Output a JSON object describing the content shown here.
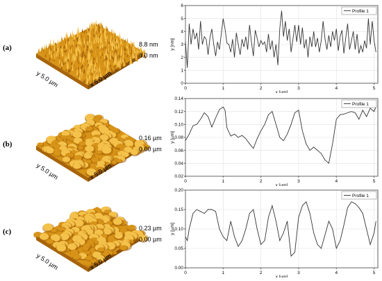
{
  "panels": [
    {
      "label": "(a)",
      "afm": {
        "z_max": "8.8 nm",
        "z_min": "0.0 nm",
        "x_axis": "x 5.0 µm",
        "y_axis": "y 5.0 µm",
        "texture": "fine-spiky"
      },
      "legend": "Profile 1"
    },
    {
      "label": "(b)",
      "afm": {
        "z_max": "0.16 µm",
        "z_min": "0.00 µm",
        "x_axis": "x 5.0 µm",
        "y_axis": "y 5.0 µm",
        "texture": "smooth-bumps"
      },
      "legend": "Profile 1"
    },
    {
      "label": "(c)",
      "afm": {
        "z_max": "0.23 µm",
        "z_min": "0.00 µm",
        "x_axis": "x 5.0 µm",
        "y_axis": "y 5.0 µm",
        "texture": "smooth-bumps"
      },
      "legend": "Profile 1"
    }
  ],
  "colors": {
    "afm_dark": "#a8640a",
    "afm_mid": "#d89418",
    "afm_light": "#f4c24a",
    "line": "#333333",
    "grid": "#e0e0e0"
  },
  "chart_data": [
    {
      "type": "line",
      "xlabel": "x [µm]",
      "ylabel": "y [nm]",
      "xlim": [
        0,
        5.1
      ],
      "ylim": [
        0,
        6
      ],
      "xticks": [
        0,
        1,
        2,
        3,
        4,
        5
      ],
      "xtick_labels": [
        "0",
        "1",
        "2",
        "3",
        "4",
        "5"
      ],
      "yticks": [
        0,
        1,
        2,
        3,
        4,
        5,
        6
      ],
      "ytick_labels": [
        "0",
        "1",
        "2",
        "3",
        "4",
        "5",
        "6"
      ],
      "grid": true,
      "legend_position": "top-right",
      "series": [
        {
          "name": "Profile 1",
          "x": [
            0,
            0.05,
            0.1,
            0.15,
            0.2,
            0.25,
            0.3,
            0.35,
            0.4,
            0.45,
            0.5,
            0.55,
            0.6,
            0.65,
            0.7,
            0.75,
            0.8,
            0.85,
            0.9,
            0.95,
            1.0,
            1.05,
            1.1,
            1.15,
            1.2,
            1.25,
            1.3,
            1.35,
            1.4,
            1.45,
            1.5,
            1.55,
            1.6,
            1.65,
            1.7,
            1.75,
            1.8,
            1.85,
            1.9,
            1.95,
            2.0,
            2.05,
            2.1,
            2.15,
            2.2,
            2.25,
            2.3,
            2.35,
            2.4,
            2.45,
            2.5,
            2.55,
            2.6,
            2.65,
            2.7,
            2.75,
            2.8,
            2.85,
            2.9,
            2.95,
            3.0,
            3.05,
            3.1,
            3.15,
            3.2,
            3.25,
            3.3,
            3.35,
            3.4,
            3.45,
            3.5,
            3.55,
            3.6,
            3.65,
            3.7,
            3.75,
            3.8,
            3.85,
            3.9,
            3.95,
            4.0,
            4.05,
            4.1,
            4.15,
            4.2,
            4.25,
            4.3,
            4.35,
            4.4,
            4.45,
            4.5,
            4.55,
            4.6,
            4.65,
            4.7,
            4.75,
            4.8,
            4.85,
            4.9,
            4.95,
            5.0,
            5.05
          ],
          "y": [
            3.2,
            1.2,
            4.6,
            3.0,
            4.2,
            3.4,
            3.9,
            2.6,
            4.8,
            3.0,
            3.6,
            3.4,
            2.2,
            3.5,
            4.2,
            3.0,
            2.1,
            3.2,
            2.6,
            3.8,
            5.0,
            4.2,
            3.1,
            3.0,
            2.4,
            3.4,
            2.0,
            3.9,
            3.0,
            2.2,
            3.4,
            2.8,
            3.6,
            2.6,
            4.5,
            3.2,
            2.1,
            4.1,
            3.5,
            2.8,
            3.3,
            3.0,
            3.2,
            2.4,
            3.8,
            2.6,
            3.3,
            2.0,
            3.0,
            1.4,
            4.2,
            5.6,
            3.6,
            4.8,
            3.3,
            4.2,
            2.4,
            3.4,
            4.5,
            3.2,
            4.5,
            3.0,
            4.3,
            2.7,
            3.4,
            2.0,
            3.6,
            2.8,
            4.0,
            2.8,
            3.5,
            2.4,
            3.3,
            4.8,
            3.4,
            2.6,
            3.7,
            2.8,
            4.0,
            3.3,
            4.2,
            2.5,
            3.6,
            4.1,
            2.3,
            3.5,
            4.6,
            2.6,
            3.3,
            4.0,
            2.6,
            3.8,
            2.3,
            2.9,
            2.4,
            3.3,
            2.7,
            5.0,
            3.0,
            4.8,
            3.3,
            2.4
          ]
        }
      ]
    },
    {
      "type": "line",
      "xlabel": "x [µm]",
      "ylabel": "y [µm]",
      "xlim": [
        0,
        5.1
      ],
      "ylim": [
        0.02,
        0.14
      ],
      "xticks": [
        0,
        1,
        2,
        3,
        4,
        5
      ],
      "xtick_labels": [
        "0",
        "1",
        "2",
        "3",
        "4",
        "5"
      ],
      "yticks": [
        0.02,
        0.04,
        0.06,
        0.08,
        0.1,
        0.12,
        0.14
      ],
      "ytick_labels": [
        "0.02",
        "0.04",
        "0.06",
        "0.08",
        "0.10",
        "0.12",
        "0.14"
      ],
      "grid": true,
      "legend_position": "top-right",
      "series": [
        {
          "name": "Profile 1",
          "x": [
            0,
            0.1,
            0.2,
            0.3,
            0.4,
            0.5,
            0.6,
            0.7,
            0.8,
            0.9,
            1.0,
            1.05,
            1.1,
            1.2,
            1.3,
            1.4,
            1.5,
            1.6,
            1.7,
            1.8,
            1.9,
            2.0,
            2.1,
            2.2,
            2.3,
            2.4,
            2.5,
            2.6,
            2.7,
            2.8,
            2.9,
            3.0,
            3.1,
            3.2,
            3.3,
            3.4,
            3.5,
            3.6,
            3.7,
            3.8,
            3.9,
            4.0,
            4.1,
            4.2,
            4.3,
            4.4,
            4.5,
            4.6,
            4.7,
            4.8,
            4.9,
            5.0,
            5.05
          ],
          "y": [
            0.075,
            0.085,
            0.098,
            0.1,
            0.108,
            0.118,
            0.112,
            0.096,
            0.11,
            0.123,
            0.127,
            0.122,
            0.095,
            0.082,
            0.085,
            0.08,
            0.083,
            0.078,
            0.07,
            0.063,
            0.078,
            0.09,
            0.1,
            0.115,
            0.12,
            0.1,
            0.08,
            0.075,
            0.085,
            0.1,
            0.118,
            0.122,
            0.09,
            0.07,
            0.06,
            0.065,
            0.06,
            0.055,
            0.045,
            0.04,
            0.07,
            0.108,
            0.115,
            0.116,
            0.118,
            0.12,
            0.118,
            0.108,
            0.122,
            0.112,
            0.125,
            0.12,
            0.127
          ]
        }
      ]
    },
    {
      "type": "line",
      "xlabel": "x [µm]",
      "ylabel": "y [µm]",
      "xlim": [
        0,
        5.1
      ],
      "ylim": [
        0,
        0.2
      ],
      "xticks": [
        0,
        1,
        2,
        3,
        4,
        5
      ],
      "xtick_labels": [
        "0",
        "1",
        "2",
        "3",
        "4",
        "5"
      ],
      "yticks": [
        0,
        0.05,
        0.1,
        0.15,
        0.2
      ],
      "ytick_labels": [
        "0.00",
        "0.05",
        "0.10",
        "0.15",
        "0.20"
      ],
      "grid": true,
      "legend_position": "top-right",
      "series": [
        {
          "name": "Profile 1",
          "x": [
            0,
            0.05,
            0.1,
            0.2,
            0.3,
            0.4,
            0.5,
            0.6,
            0.7,
            0.8,
            0.9,
            1.0,
            1.1,
            1.2,
            1.3,
            1.4,
            1.5,
            1.6,
            1.7,
            1.8,
            1.9,
            2.0,
            2.1,
            2.2,
            2.3,
            2.4,
            2.5,
            2.6,
            2.7,
            2.8,
            2.9,
            3.0,
            3.1,
            3.2,
            3.3,
            3.4,
            3.5,
            3.6,
            3.7,
            3.8,
            3.9,
            4.0,
            4.1,
            4.2,
            4.3,
            4.4,
            4.5,
            4.6,
            4.7,
            4.8,
            4.9,
            5.0,
            5.05
          ],
          "y": [
            0.08,
            0.07,
            0.1,
            0.14,
            0.15,
            0.145,
            0.14,
            0.15,
            0.15,
            0.145,
            0.1,
            0.08,
            0.07,
            0.12,
            0.08,
            0.055,
            0.07,
            0.1,
            0.14,
            0.15,
            0.1,
            0.06,
            0.07,
            0.13,
            0.16,
            0.12,
            0.07,
            0.09,
            0.12,
            0.03,
            0.04,
            0.13,
            0.16,
            0.17,
            0.14,
            0.09,
            0.06,
            0.05,
            0.085,
            0.12,
            0.1,
            0.05,
            0.07,
            0.11,
            0.155,
            0.17,
            0.165,
            0.155,
            0.14,
            0.1,
            0.06,
            0.09,
            0.12
          ]
        }
      ]
    }
  ]
}
